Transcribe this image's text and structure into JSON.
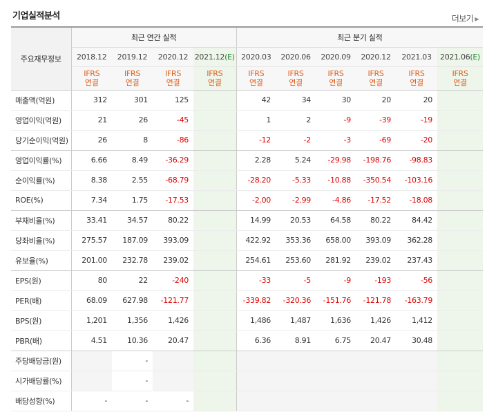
{
  "header": {
    "title": "기업실적분석",
    "more_label": "더보기"
  },
  "table": {
    "corner_label": "주요재무정보",
    "groups": {
      "annual": "최근 연간 실적",
      "quarter": "최근 분기 실적"
    },
    "dates": [
      "2018.12",
      "2019.12",
      "2020.12",
      "2021.12",
      "2020.03",
      "2020.06",
      "2020.09",
      "2020.12",
      "2021.03",
      "2021.06"
    ],
    "estimate_mark": "(E)",
    "ifrs": {
      "line1": "IFRS",
      "line2": "연결"
    },
    "rows": [
      {
        "label": "매출액(억원)",
        "values": [
          "312",
          "301",
          "125",
          "",
          "42",
          "34",
          "30",
          "20",
          "20",
          ""
        ]
      },
      {
        "label": "영업이익(억원)",
        "values": [
          "21",
          "26",
          "-45",
          "",
          "1",
          "2",
          "-9",
          "-39",
          "-19",
          ""
        ]
      },
      {
        "label": "당기순이익(억원)",
        "values": [
          "26",
          "8",
          "-86",
          "",
          "-12",
          "-2",
          "-3",
          "-69",
          "-20",
          ""
        ]
      },
      {
        "label": "영업이익률(%)",
        "values": [
          "6.66",
          "8.49",
          "-36.29",
          "",
          "2.28",
          "5.24",
          "-29.98",
          "-198.76",
          "-98.83",
          ""
        ]
      },
      {
        "label": "순이익률(%)",
        "values": [
          "8.38",
          "2.55",
          "-68.79",
          "",
          "-28.20",
          "-5.33",
          "-10.88",
          "-350.54",
          "-103.16",
          ""
        ]
      },
      {
        "label": "ROE(%)",
        "values": [
          "7.34",
          "1.75",
          "-17.53",
          "",
          "-2.00",
          "-2.99",
          "-4.86",
          "-17.52",
          "-18.08",
          ""
        ]
      },
      {
        "label": "부채비율(%)",
        "values": [
          "33.41",
          "34.57",
          "80.22",
          "",
          "14.99",
          "20.53",
          "64.58",
          "80.22",
          "84.42",
          ""
        ]
      },
      {
        "label": "당좌비율(%)",
        "values": [
          "275.57",
          "187.09",
          "393.09",
          "",
          "422.92",
          "353.36",
          "658.00",
          "393.09",
          "362.28",
          ""
        ]
      },
      {
        "label": "유보율(%)",
        "values": [
          "201.00",
          "232.78",
          "239.02",
          "",
          "254.61",
          "253.60",
          "281.92",
          "239.02",
          "237.43",
          ""
        ]
      },
      {
        "label": "EPS(원)",
        "values": [
          "80",
          "22",
          "-240",
          "",
          "-33",
          "-5",
          "-9",
          "-193",
          "-56",
          ""
        ]
      },
      {
        "label": "PER(배)",
        "values": [
          "68.09",
          "627.98",
          "-121.77",
          "",
          "-339.82",
          "-320.36",
          "-151.76",
          "-121.78",
          "-163.79",
          ""
        ]
      },
      {
        "label": "BPS(원)",
        "values": [
          "1,201",
          "1,356",
          "1,426",
          "",
          "1,486",
          "1,487",
          "1,636",
          "1,426",
          "1,412",
          ""
        ]
      },
      {
        "label": "PBR(배)",
        "values": [
          "4.51",
          "10.36",
          "20.47",
          "",
          "6.36",
          "8.91",
          "6.75",
          "20.47",
          "30.48",
          ""
        ]
      },
      {
        "label": "주당배당금(원)",
        "values": [
          "",
          "-",
          "",
          "",
          "",
          "",
          "",
          "",
          "",
          ""
        ]
      },
      {
        "label": "시가배당률(%)",
        "values": [
          "",
          "-",
          "",
          "",
          "",
          "",
          "",
          "",
          "",
          ""
        ]
      },
      {
        "label": "배당성향(%)",
        "values": [
          "-",
          "-",
          "-",
          "",
          "",
          "",
          "",
          "",
          "",
          ""
        ]
      }
    ]
  },
  "colors": {
    "negative": "#e00000",
    "ifrs": "#e15c17",
    "estimate_bg": "#eef5ea",
    "estimate_mark": "#1a8a2e"
  }
}
